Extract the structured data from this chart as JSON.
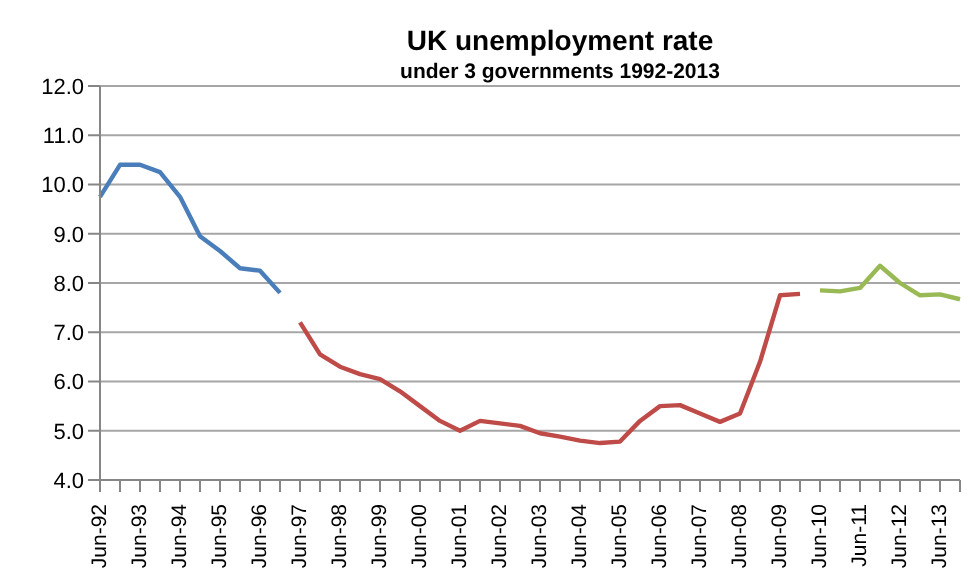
{
  "chart_data": {
    "type": "line",
    "title": "UK unemployment rate",
    "subtitle": "under 3 governments 1992-2013",
    "categories": [
      "Jun-92",
      null,
      "Jun-93",
      null,
      "Jun-94",
      null,
      "Jun-95",
      null,
      "Jun-96",
      null,
      "Jun-97",
      null,
      "Jun-98",
      null,
      "Jun-99",
      null,
      "Jun-00",
      null,
      "Jun-01",
      null,
      "Jun-02",
      null,
      "Jun-03",
      null,
      "Jun-04",
      null,
      "Jun-05",
      null,
      "Jun-06",
      null,
      "Jun-07",
      null,
      "Jun-08",
      null,
      "Jun-09",
      null,
      "Jun-10",
      null,
      "Jun-11",
      null,
      "Jun-12",
      null,
      "Jun-13",
      null
    ],
    "series": [
      {
        "color": "#4a7ebb",
        "values": [
          9.75,
          10.4,
          10.4,
          10.25,
          9.75,
          8.95,
          8.65,
          8.3,
          8.25,
          7.8,
          null,
          null,
          null,
          null,
          null,
          null,
          null,
          null,
          null,
          null,
          null,
          null,
          null,
          null,
          null,
          null,
          null,
          null,
          null,
          null,
          null,
          null,
          null,
          null,
          null,
          null,
          null,
          null,
          null,
          null,
          null,
          null,
          null,
          null
        ]
      },
      {
        "color": "#be4b48",
        "values": [
          null,
          null,
          null,
          null,
          null,
          null,
          null,
          null,
          null,
          null,
          7.2,
          6.55,
          6.3,
          6.15,
          6.05,
          5.8,
          5.5,
          5.2,
          5.0,
          5.2,
          5.15,
          5.1,
          4.95,
          4.88,
          4.8,
          4.75,
          4.78,
          5.2,
          5.5,
          5.52,
          5.35,
          5.18,
          5.35,
          6.4,
          7.75,
          7.78,
          null,
          null,
          null,
          null,
          null,
          null,
          null,
          null
        ]
      },
      {
        "color": "#98b954",
        "values": [
          null,
          null,
          null,
          null,
          null,
          null,
          null,
          null,
          null,
          null,
          null,
          null,
          null,
          null,
          null,
          null,
          null,
          null,
          null,
          null,
          null,
          null,
          null,
          null,
          null,
          null,
          null,
          null,
          null,
          null,
          null,
          null,
          null,
          null,
          null,
          null,
          7.85,
          7.83,
          7.9,
          8.35,
          8.0,
          7.75,
          7.77,
          7.67
        ]
      }
    ],
    "ylim": [
      4,
      12
    ],
    "yticks": [
      {
        "value": 4,
        "label": "4.0"
      },
      {
        "value": 5,
        "label": "5.0"
      },
      {
        "value": 6,
        "label": "6.0"
      },
      {
        "value": 7,
        "label": "7.0"
      },
      {
        "value": 8,
        "label": "8.0"
      },
      {
        "value": 9,
        "label": "9.0"
      },
      {
        "value": 10,
        "label": "10.0"
      },
      {
        "value": 11,
        "label": "11.0"
      },
      {
        "value": 12,
        "label": "12.0"
      }
    ],
    "grid": "y",
    "marker": "none",
    "line_style": "solid"
  }
}
